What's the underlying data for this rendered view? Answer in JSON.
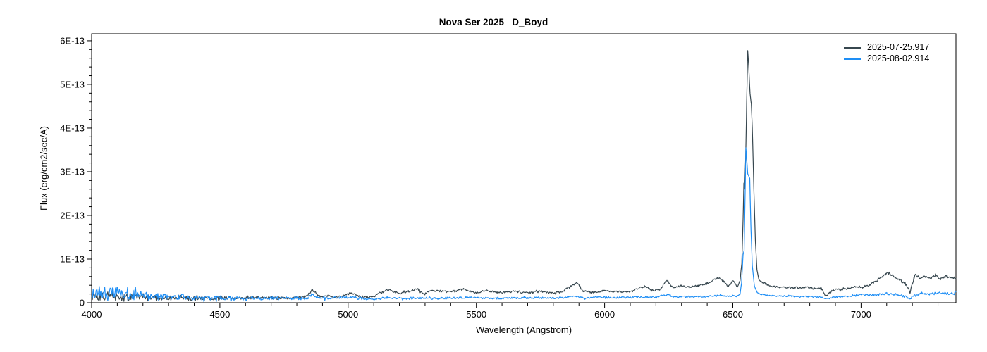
{
  "window": {
    "background": "#ffffff"
  },
  "chart_data": {
    "type": "line",
    "title": "Nova Ser 2025   D_Boyd",
    "xlabel": "Wavelength (Angstrom)",
    "ylabel": "Flux (erg/cm2/sec/A)",
    "x_range": [
      4000,
      7370
    ],
    "y_range_flux": [
      0,
      6.16e-13
    ],
    "flux_unit": 1e-13,
    "x_major_ticks": [
      4000,
      4500,
      5000,
      5500,
      6000,
      6500,
      7000
    ],
    "x_minor_step": 100,
    "y_major_ticks": [
      [
        0,
        "0"
      ],
      [
        1,
        "1E-13"
      ],
      [
        2,
        "2E-13"
      ],
      [
        3,
        "3E-13"
      ],
      [
        4,
        "4E-13"
      ],
      [
        5,
        "5E-13"
      ],
      [
        6,
        "6E-13"
      ]
    ],
    "y_minor_step_e13": 0.2,
    "grid": false,
    "legend_position": "top-right",
    "axis_color": "#000000",
    "sample_step_angstrom": 3,
    "smooth_region": [
      6533,
      6605
    ],
    "smooth_noise_scale": 0.25,
    "series": [
      {
        "name": "2025-07-25.917",
        "color": "#37474f",
        "seed": 20250725,
        "keypoints_e13": [
          [
            4000,
            0.18
          ],
          [
            4040,
            0.14
          ],
          [
            4080,
            0.16
          ],
          [
            4120,
            0.12
          ],
          [
            4160,
            0.13
          ],
          [
            4200,
            0.11
          ],
          [
            4250,
            0.1
          ],
          [
            4300,
            0.1
          ],
          [
            4340,
            0.13
          ],
          [
            4380,
            0.1
          ],
          [
            4440,
            0.1
          ],
          [
            4500,
            0.11
          ],
          [
            4560,
            0.1
          ],
          [
            4620,
            0.11
          ],
          [
            4680,
            0.11
          ],
          [
            4740,
            0.11
          ],
          [
            4800,
            0.12
          ],
          [
            4840,
            0.15
          ],
          [
            4861,
            0.3
          ],
          [
            4885,
            0.15
          ],
          [
            4922,
            0.16
          ],
          [
            4950,
            0.12
          ],
          [
            5010,
            0.22
          ],
          [
            5050,
            0.13
          ],
          [
            5100,
            0.14
          ],
          [
            5155,
            0.3
          ],
          [
            5200,
            0.21
          ],
          [
            5235,
            0.26
          ],
          [
            5272,
            0.32
          ],
          [
            5296,
            0.19
          ],
          [
            5320,
            0.28
          ],
          [
            5355,
            0.27
          ],
          [
            5400,
            0.24
          ],
          [
            5450,
            0.31
          ],
          [
            5500,
            0.23
          ],
          [
            5540,
            0.28
          ],
          [
            5580,
            0.23
          ],
          [
            5620,
            0.24
          ],
          [
            5650,
            0.26
          ],
          [
            5690,
            0.22
          ],
          [
            5720,
            0.24
          ],
          [
            5755,
            0.26
          ],
          [
            5790,
            0.22
          ],
          [
            5830,
            0.24
          ],
          [
            5893,
            0.46
          ],
          [
            5915,
            0.27
          ],
          [
            5950,
            0.24
          ],
          [
            5990,
            0.27
          ],
          [
            6030,
            0.26
          ],
          [
            6070,
            0.24
          ],
          [
            6110,
            0.27
          ],
          [
            6155,
            0.38
          ],
          [
            6185,
            0.28
          ],
          [
            6215,
            0.3
          ],
          [
            6243,
            0.52
          ],
          [
            6268,
            0.33
          ],
          [
            6300,
            0.39
          ],
          [
            6330,
            0.36
          ],
          [
            6365,
            0.39
          ],
          [
            6400,
            0.44
          ],
          [
            6425,
            0.52
          ],
          [
            6445,
            0.57
          ],
          [
            6465,
            0.48
          ],
          [
            6483,
            0.37
          ],
          [
            6502,
            0.51
          ],
          [
            6518,
            0.36
          ],
          [
            6528,
            0.5
          ],
          [
            6535,
            0.9
          ],
          [
            6540,
            1.9
          ],
          [
            6543,
            2.74
          ],
          [
            6546,
            2.6
          ],
          [
            6550,
            3.3
          ],
          [
            6554,
            4.6
          ],
          [
            6558,
            5.78
          ],
          [
            6562,
            5.4
          ],
          [
            6567,
            4.8
          ],
          [
            6572,
            4.55
          ],
          [
            6576,
            4.0
          ],
          [
            6582,
            2.6
          ],
          [
            6588,
            1.4
          ],
          [
            6594,
            0.75
          ],
          [
            6602,
            0.52
          ],
          [
            6615,
            0.47
          ],
          [
            6640,
            0.4
          ],
          [
            6665,
            0.37
          ],
          [
            6700,
            0.35
          ],
          [
            6740,
            0.34
          ],
          [
            6780,
            0.35
          ],
          [
            6815,
            0.33
          ],
          [
            6845,
            0.32
          ],
          [
            6862,
            0.16
          ],
          [
            6872,
            0.2
          ],
          [
            6890,
            0.28
          ],
          [
            6920,
            0.31
          ],
          [
            6950,
            0.33
          ],
          [
            6980,
            0.38
          ],
          [
            7005,
            0.35
          ],
          [
            7035,
            0.41
          ],
          [
            7065,
            0.52
          ],
          [
            7095,
            0.66
          ],
          [
            7110,
            0.68
          ],
          [
            7130,
            0.58
          ],
          [
            7155,
            0.5
          ],
          [
            7172,
            0.45
          ],
          [
            7191,
            0.24
          ],
          [
            7206,
            0.55
          ],
          [
            7213,
            0.65
          ],
          [
            7230,
            0.55
          ],
          [
            7250,
            0.62
          ],
          [
            7270,
            0.55
          ],
          [
            7290,
            0.63
          ],
          [
            7310,
            0.55
          ],
          [
            7330,
            0.6
          ],
          [
            7350,
            0.55
          ],
          [
            7370,
            0.58
          ]
        ],
        "noise_profile_e13": [
          [
            4000,
            0.11
          ],
          [
            4150,
            0.09
          ],
          [
            4300,
            0.055
          ],
          [
            4600,
            0.03
          ],
          [
            5000,
            0.025
          ],
          [
            5600,
            0.022
          ],
          [
            6200,
            0.022
          ],
          [
            6500,
            0.02
          ],
          [
            6620,
            0.02
          ],
          [
            7000,
            0.028
          ],
          [
            7370,
            0.032
          ]
        ]
      },
      {
        "name": "2025-08-02.914",
        "color": "#1e8ef5",
        "seed": 20250802,
        "keypoints_e13": [
          [
            4000,
            0.22
          ],
          [
            4030,
            0.26
          ],
          [
            4060,
            0.18
          ],
          [
            4100,
            0.22
          ],
          [
            4140,
            0.16
          ],
          [
            4180,
            0.17
          ],
          [
            4220,
            0.14
          ],
          [
            4260,
            0.13
          ],
          [
            4300,
            0.12
          ],
          [
            4340,
            0.14
          ],
          [
            4400,
            0.11
          ],
          [
            4460,
            0.11
          ],
          [
            4520,
            0.1
          ],
          [
            4580,
            0.1
          ],
          [
            4650,
            0.1
          ],
          [
            4720,
            0.1
          ],
          [
            4800,
            0.1
          ],
          [
            4840,
            0.1
          ],
          [
            4861,
            0.2
          ],
          [
            4885,
            0.11
          ],
          [
            4922,
            0.1
          ],
          [
            5010,
            0.13
          ],
          [
            5060,
            0.09
          ],
          [
            5120,
            0.09
          ],
          [
            5160,
            0.12
          ],
          [
            5220,
            0.1
          ],
          [
            5280,
            0.1
          ],
          [
            5340,
            0.1
          ],
          [
            5400,
            0.11
          ],
          [
            5460,
            0.12
          ],
          [
            5520,
            0.11
          ],
          [
            5580,
            0.1
          ],
          [
            5640,
            0.11
          ],
          [
            5700,
            0.11
          ],
          [
            5760,
            0.11
          ],
          [
            5820,
            0.11
          ],
          [
            5876,
            0.15
          ],
          [
            5920,
            0.11
          ],
          [
            5980,
            0.12
          ],
          [
            6040,
            0.12
          ],
          [
            6100,
            0.12
          ],
          [
            6160,
            0.13
          ],
          [
            6200,
            0.13
          ],
          [
            6243,
            0.18
          ],
          [
            6275,
            0.13
          ],
          [
            6330,
            0.14
          ],
          [
            6390,
            0.14
          ],
          [
            6440,
            0.16
          ],
          [
            6490,
            0.15
          ],
          [
            6515,
            0.15
          ],
          [
            6528,
            0.2
          ],
          [
            6534,
            0.45
          ],
          [
            6540,
            1.1
          ],
          [
            6544,
            1.2
          ],
          [
            6547,
            2.2
          ],
          [
            6551,
            3.55
          ],
          [
            6554,
            3.3
          ],
          [
            6558,
            2.95
          ],
          [
            6562,
            2.9
          ],
          [
            6566,
            2.85
          ],
          [
            6570,
            1.8
          ],
          [
            6576,
            0.85
          ],
          [
            6584,
            0.38
          ],
          [
            6595,
            0.23
          ],
          [
            6610,
            0.19
          ],
          [
            6650,
            0.16
          ],
          [
            6700,
            0.15
          ],
          [
            6750,
            0.14
          ],
          [
            6800,
            0.14
          ],
          [
            6845,
            0.13
          ],
          [
            6862,
            0.08
          ],
          [
            6880,
            0.11
          ],
          [
            6910,
            0.14
          ],
          [
            6950,
            0.15
          ],
          [
            7000,
            0.19
          ],
          [
            7050,
            0.17
          ],
          [
            7100,
            0.21
          ],
          [
            7150,
            0.18
          ],
          [
            7191,
            0.1
          ],
          [
            7210,
            0.16
          ],
          [
            7240,
            0.22
          ],
          [
            7268,
            0.19
          ],
          [
            7300,
            0.23
          ],
          [
            7340,
            0.21
          ],
          [
            7370,
            0.22
          ]
        ],
        "noise_profile_e13": [
          [
            4000,
            0.16
          ],
          [
            4150,
            0.13
          ],
          [
            4300,
            0.07
          ],
          [
            4600,
            0.04
          ],
          [
            5000,
            0.028
          ],
          [
            5600,
            0.02
          ],
          [
            6200,
            0.018
          ],
          [
            6500,
            0.016
          ],
          [
            6620,
            0.015
          ],
          [
            7000,
            0.022
          ],
          [
            7370,
            0.035
          ]
        ]
      }
    ]
  }
}
